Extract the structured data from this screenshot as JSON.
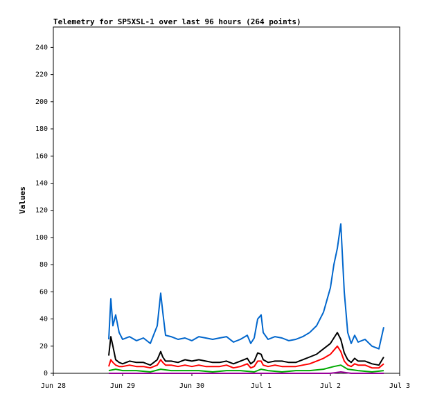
{
  "chart_data": {
    "type": "line",
    "title": "Telemetry for SP5XSL-1 over last 96 hours (264 points)",
    "xlabel": "",
    "ylabel": "Values",
    "xlim": [
      "Jun 28",
      "Jul 3"
    ],
    "ylim": [
      0,
      255
    ],
    "x_ticks": [
      "Jun 28",
      "Jun 29",
      "Jun 30",
      "Jul 1",
      "Jul 2",
      "Jul 3"
    ],
    "y_ticks": [
      0,
      20,
      40,
      60,
      80,
      100,
      120,
      140,
      160,
      180,
      200,
      220,
      240
    ],
    "grid": false,
    "x_unit": "days since Jun 28 00:00",
    "series": [
      {
        "color": "#0066cc",
        "x": [
          0.8,
          0.83,
          0.86,
          0.9,
          0.95,
          1.0,
          1.1,
          1.2,
          1.3,
          1.4,
          1.5,
          1.55,
          1.58,
          1.62,
          1.7,
          1.8,
          1.9,
          2.0,
          2.1,
          2.2,
          2.3,
          2.4,
          2.5,
          2.6,
          2.7,
          2.8,
          2.85,
          2.9,
          2.95,
          3.0,
          3.03,
          3.1,
          3.2,
          3.3,
          3.4,
          3.5,
          3.6,
          3.7,
          3.8,
          3.9,
          4.0,
          4.05,
          4.1,
          4.15,
          4.2,
          4.25,
          4.3,
          4.35,
          4.4,
          4.5,
          4.6,
          4.7,
          4.77
        ],
        "y": [
          25,
          55,
          35,
          43,
          30,
          25,
          27,
          24,
          26,
          22,
          35,
          59,
          45,
          28,
          27,
          25,
          26,
          24,
          27,
          26,
          25,
          26,
          27,
          23,
          25,
          28,
          22,
          26,
          40,
          43,
          30,
          25,
          27,
          26,
          24,
          25,
          27,
          30,
          35,
          45,
          63,
          80,
          92,
          110,
          60,
          30,
          22,
          28,
          23,
          25,
          20,
          18,
          34
        ]
      },
      {
        "color": "#000000",
        "x": [
          0.8,
          0.83,
          0.86,
          0.9,
          0.95,
          1.0,
          1.1,
          1.2,
          1.3,
          1.4,
          1.5,
          1.55,
          1.58,
          1.62,
          1.7,
          1.8,
          1.9,
          2.0,
          2.1,
          2.2,
          2.3,
          2.4,
          2.5,
          2.6,
          2.7,
          2.8,
          2.85,
          2.9,
          2.95,
          3.0,
          3.03,
          3.1,
          3.2,
          3.3,
          3.4,
          3.5,
          3.6,
          3.7,
          3.8,
          3.9,
          4.0,
          4.05,
          4.1,
          4.15,
          4.2,
          4.25,
          4.3,
          4.35,
          4.4,
          4.5,
          4.6,
          4.7,
          4.77
        ],
        "y": [
          13,
          27,
          20,
          10,
          8,
          7,
          9,
          8,
          8,
          6,
          10,
          16,
          12,
          9,
          9,
          8,
          10,
          9,
          10,
          9,
          8,
          8,
          9,
          7,
          9,
          11,
          7,
          9,
          15,
          14,
          10,
          8,
          9,
          9,
          8,
          8,
          10,
          12,
          14,
          18,
          22,
          26,
          30,
          25,
          15,
          10,
          8,
          11,
          9,
          9,
          7,
          6,
          12
        ]
      },
      {
        "color": "#ff0000",
        "x": [
          0.8,
          0.83,
          0.86,
          0.9,
          0.95,
          1.0,
          1.1,
          1.2,
          1.3,
          1.4,
          1.5,
          1.55,
          1.58,
          1.62,
          1.7,
          1.8,
          1.9,
          2.0,
          2.1,
          2.2,
          2.3,
          2.4,
          2.5,
          2.6,
          2.7,
          2.8,
          2.85,
          2.9,
          2.95,
          3.0,
          3.03,
          3.1,
          3.2,
          3.3,
          3.4,
          3.5,
          3.6,
          3.7,
          3.8,
          3.9,
          4.0,
          4.05,
          4.1,
          4.15,
          4.2,
          4.25,
          4.3,
          4.35,
          4.4,
          4.5,
          4.6,
          4.7,
          4.77
        ],
        "y": [
          5,
          10,
          8,
          6,
          5,
          5,
          6,
          5,
          5,
          4,
          6,
          10,
          8,
          6,
          6,
          5,
          6,
          5,
          6,
          5,
          5,
          5,
          6,
          4,
          5,
          7,
          4,
          5,
          9,
          9,
          6,
          5,
          6,
          5,
          5,
          5,
          6,
          7,
          9,
          11,
          14,
          17,
          20,
          16,
          9,
          6,
          5,
          7,
          6,
          6,
          4,
          4,
          7
        ]
      },
      {
        "color": "#00aa00",
        "x": [
          0.8,
          0.9,
          1.0,
          1.2,
          1.4,
          1.55,
          1.7,
          1.9,
          2.1,
          2.3,
          2.5,
          2.7,
          2.9,
          3.0,
          3.1,
          3.3,
          3.5,
          3.7,
          3.9,
          4.05,
          4.15,
          4.25,
          4.4,
          4.6,
          4.77
        ],
        "y": [
          2,
          3,
          2,
          2,
          1,
          3,
          2,
          2,
          2,
          1,
          2,
          2,
          1,
          3,
          2,
          1,
          2,
          2,
          3,
          5,
          6,
          3,
          2,
          1,
          2
        ]
      },
      {
        "color": "#990099",
        "x": [
          0.8,
          1.0,
          1.5,
          2.0,
          2.5,
          3.0,
          3.5,
          4.0,
          4.15,
          4.3,
          4.77
        ],
        "y": [
          0,
          0,
          0,
          0,
          0,
          0,
          0,
          0,
          1,
          0,
          0
        ]
      }
    ]
  }
}
